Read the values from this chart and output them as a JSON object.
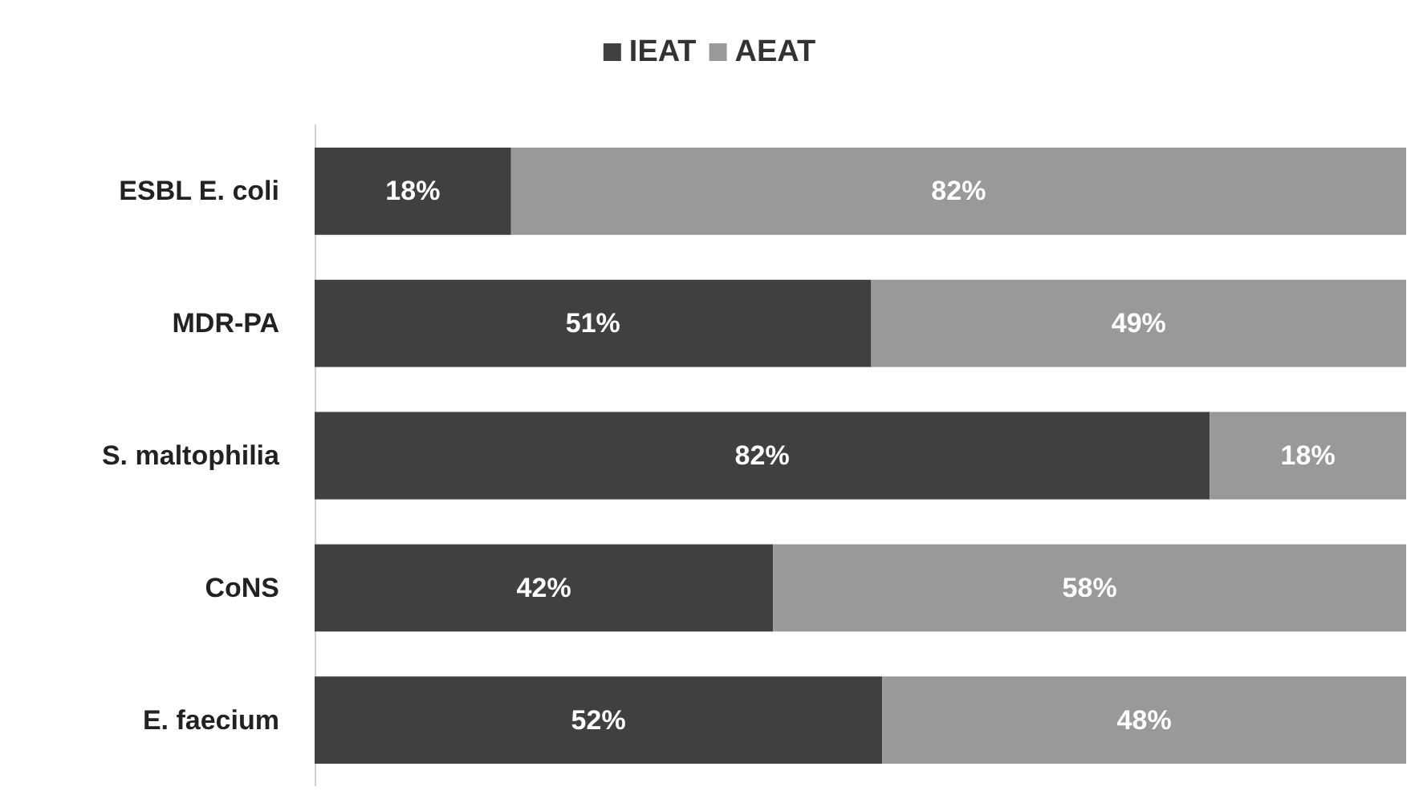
{
  "chart_data": {
    "type": "bar",
    "orientation": "horizontal",
    "stacked": true,
    "legend": "top",
    "xlim": [
      0,
      100
    ],
    "tick_labels": "y",
    "categories": [
      "ESBL E. coli",
      "MDR-PA",
      "S. maltophilia",
      "CoNS",
      "E. faecium"
    ],
    "series": [
      {
        "name": "IEAT",
        "color": "#404040",
        "values": [
          18,
          51,
          82,
          42,
          52
        ],
        "value_labels": [
          "18%",
          "51%",
          "82%",
          "42%",
          "52%"
        ]
      },
      {
        "name": "AEAT",
        "color": "#999999",
        "values": [
          82,
          49,
          18,
          58,
          48
        ],
        "value_labels": [
          "82%",
          "49%",
          "18%",
          "58%",
          "48%"
        ]
      }
    ]
  }
}
